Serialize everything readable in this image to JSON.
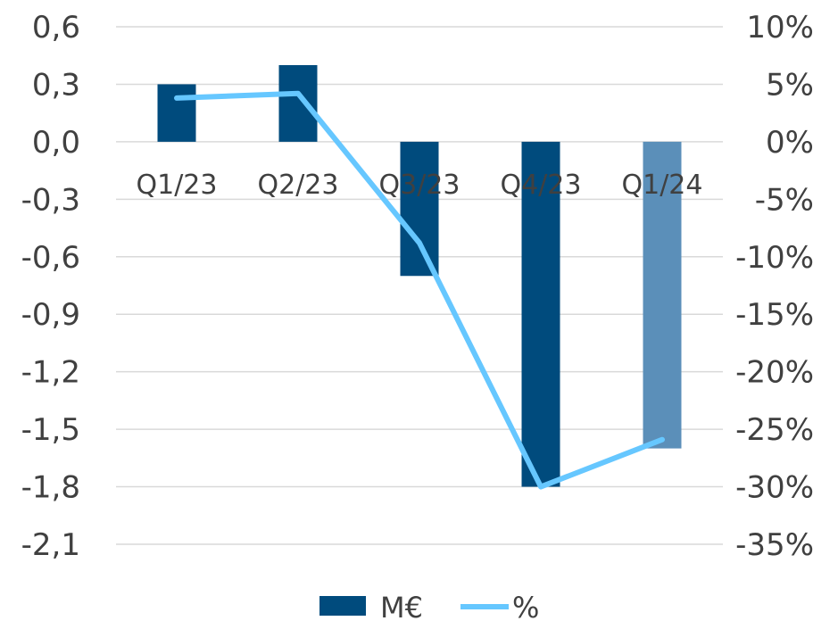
{
  "chart_data": {
    "type": "bar+line",
    "categories": [
      "Q1/23",
      "Q2/23",
      "Q3/23",
      "Q4/23",
      "Q1/24"
    ],
    "series": [
      {
        "name": "M€",
        "type": "bar",
        "axis": "left",
        "values": [
          0.3,
          0.4,
          -0.7,
          -1.8,
          -1.6
        ],
        "colors": [
          "#004b7d",
          "#004b7d",
          "#004b7d",
          "#004b7d",
          "#5b8fb9"
        ]
      },
      {
        "name": "%",
        "type": "line",
        "axis": "right",
        "values": [
          3.8,
          4.2,
          -8.8,
          -30.0,
          -25.9
        ],
        "color": "#66c7ff"
      }
    ],
    "left_axis": {
      "ylim": [
        -2.1,
        0.6
      ],
      "ticks": [
        0.6,
        0.3,
        0.0,
        -0.3,
        -0.6,
        -0.9,
        -1.2,
        -1.5,
        -1.8,
        -2.1
      ],
      "tick_labels": [
        "0,6",
        "0,3",
        "0,0",
        "-0,3",
        "-0,6",
        "-0,9",
        "-1,2",
        "-1,5",
        "-1,8",
        "-2,1"
      ]
    },
    "right_axis": {
      "ylim": [
        -35,
        10
      ],
      "ticks": [
        10,
        5,
        0,
        -5,
        -10,
        -15,
        -20,
        -25,
        -30,
        -35
      ],
      "tick_labels": [
        "10%",
        "5%",
        "0%",
        "-5%",
        "-10%",
        "-15%",
        "-20%",
        "-25%",
        "-30%",
        "-35%"
      ]
    },
    "grid": true,
    "legend": {
      "position": "bottom",
      "entries": [
        "M€",
        "%"
      ]
    }
  }
}
